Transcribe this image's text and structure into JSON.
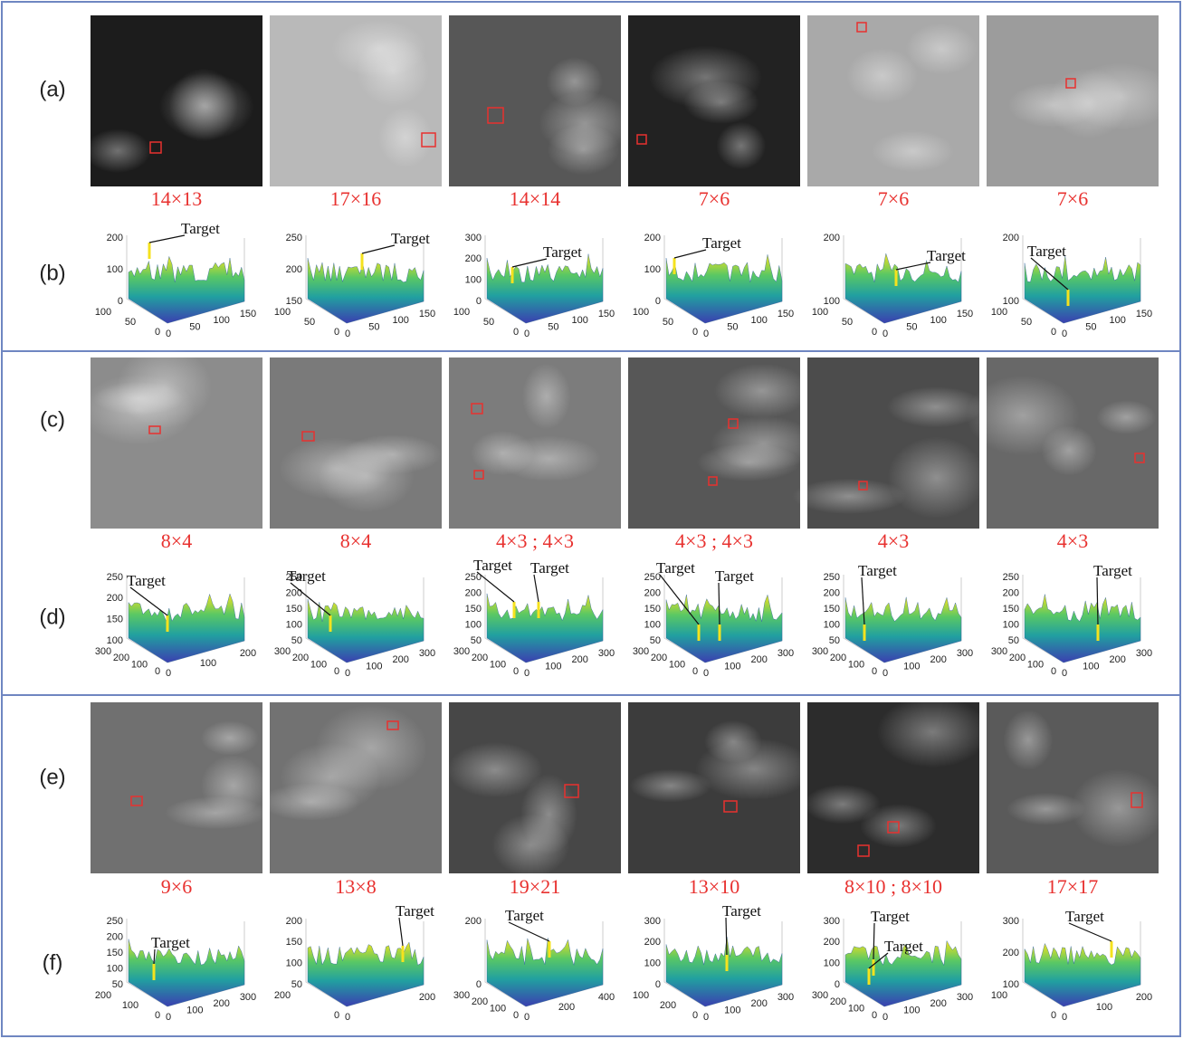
{
  "groups": [
    {
      "image_row": {
        "label": "(a)",
        "panels": [
          {
            "size": "14×13"
          },
          {
            "size": "17×16"
          },
          {
            "size": "14×14"
          },
          {
            "size": "7×6"
          },
          {
            "size": "7×6"
          },
          {
            "size": "7×6"
          }
        ]
      },
      "plot_row": {
        "label": "(b)",
        "panels": [
          {
            "targets": [
              "Target"
            ],
            "z_ticks": [
              "200",
              "100",
              "0"
            ],
            "y_ticks": [
              "100",
              "50",
              "0"
            ],
            "x_ticks": [
              "0",
              "50",
              "100",
              "150"
            ]
          },
          {
            "targets": [
              "Target"
            ],
            "z_ticks": [
              "250",
              "200",
              "150"
            ],
            "y_ticks": [
              "100",
              "50",
              "0"
            ],
            "x_ticks": [
              "0",
              "50",
              "100",
              "150"
            ]
          },
          {
            "targets": [
              "Target"
            ],
            "z_ticks": [
              "300",
              "200",
              "100",
              "0"
            ],
            "y_ticks": [
              "100",
              "50",
              "0"
            ],
            "x_ticks": [
              "0",
              "50",
              "100",
              "150"
            ]
          },
          {
            "targets": [
              "Target"
            ],
            "z_ticks": [
              "200",
              "100",
              "0"
            ],
            "y_ticks": [
              "100",
              "50",
              "0"
            ],
            "x_ticks": [
              "0",
              "50",
              "100",
              "150"
            ]
          },
          {
            "targets": [
              "Target"
            ],
            "z_ticks": [
              "200",
              "100"
            ],
            "y_ticks": [
              "100",
              "50",
              "0"
            ],
            "x_ticks": [
              "0",
              "50",
              "100",
              "150"
            ]
          },
          {
            "targets": [
              "Target"
            ],
            "z_ticks": [
              "200",
              "100"
            ],
            "y_ticks": [
              "100",
              "50",
              "0"
            ],
            "x_ticks": [
              "0",
              "50",
              "100",
              "150"
            ]
          }
        ]
      }
    },
    {
      "image_row": {
        "label": "(c)",
        "panels": [
          {
            "size": "8×4"
          },
          {
            "size": "8×4"
          },
          {
            "size": "4×3 ; 4×3"
          },
          {
            "size": "4×3 ; 4×3"
          },
          {
            "size": "4×3"
          },
          {
            "size": "4×3"
          }
        ]
      },
      "plot_row": {
        "label": "(d)",
        "panels": [
          {
            "targets": [
              "Target"
            ],
            "z_ticks": [
              "250",
              "200",
              "150",
              "100"
            ],
            "y_ticks": [
              "300",
              "200",
              "100",
              "0"
            ],
            "x_ticks": [
              "0",
              "100",
              "200"
            ]
          },
          {
            "targets": [
              "Target"
            ],
            "z_ticks": [
              "250",
              "200",
              "150",
              "100",
              "50"
            ],
            "y_ticks": [
              "300",
              "200",
              "100",
              "0"
            ],
            "x_ticks": [
              "0",
              "100",
              "200",
              "300"
            ]
          },
          {
            "targets": [
              "Target",
              "Target"
            ],
            "z_ticks": [
              "250",
              "200",
              "150",
              "100",
              "50"
            ],
            "y_ticks": [
              "300",
              "200",
              "100",
              "0"
            ],
            "x_ticks": [
              "0",
              "100",
              "200",
              "300"
            ]
          },
          {
            "targets": [
              "Target",
              "Target"
            ],
            "z_ticks": [
              "250",
              "200",
              "150",
              "100",
              "50"
            ],
            "y_ticks": [
              "300",
              "200",
              "100",
              "0"
            ],
            "x_ticks": [
              "0",
              "100",
              "200",
              "300"
            ]
          },
          {
            "targets": [
              "Target"
            ],
            "z_ticks": [
              "250",
              "200",
              "150",
              "100",
              "50"
            ],
            "y_ticks": [
              "300",
              "200",
              "100",
              "0"
            ],
            "x_ticks": [
              "0",
              "100",
              "200",
              "300"
            ]
          },
          {
            "targets": [
              "Target"
            ],
            "z_ticks": [
              "250",
              "200",
              "150",
              "100",
              "50"
            ],
            "y_ticks": [
              "300",
              "200",
              "100",
              "0"
            ],
            "x_ticks": [
              "0",
              "100",
              "200",
              "300"
            ]
          }
        ]
      }
    },
    {
      "image_row": {
        "label": "(e)",
        "panels": [
          {
            "size": "9×6"
          },
          {
            "size": "13×8"
          },
          {
            "size": "19×21"
          },
          {
            "size": "13×10"
          },
          {
            "size": "8×10 ; 8×10"
          },
          {
            "size": "17×17"
          }
        ]
      },
      "plot_row": {
        "label": "(f)",
        "panels": [
          {
            "targets": [
              "Target"
            ],
            "z_ticks": [
              "250",
              "200",
              "150",
              "100",
              "50"
            ],
            "y_ticks": [
              "200",
              "100",
              "0"
            ],
            "x_ticks": [
              "0",
              "100",
              "200",
              "300"
            ]
          },
          {
            "targets": [
              "Target"
            ],
            "z_ticks": [
              "200",
              "150",
              "100",
              "50"
            ],
            "y_ticks": [
              "200",
              "0"
            ],
            "x_ticks": [
              "0",
              "200"
            ]
          },
          {
            "targets": [
              "Target"
            ],
            "z_ticks": [
              "200",
              "0"
            ],
            "y_ticks": [
              "300",
              "200",
              "100",
              "0"
            ],
            "x_ticks": [
              "0",
              "200",
              "400"
            ]
          },
          {
            "targets": [
              "Target"
            ],
            "z_ticks": [
              "300",
              "200",
              "100",
              "0"
            ],
            "y_ticks": [
              "100",
              "200",
              "0"
            ],
            "x_ticks": [
              "0",
              "100",
              "200",
              "300"
            ]
          },
          {
            "targets": [
              "Target",
              "Target"
            ],
            "z_ticks": [
              "300",
              "200",
              "100",
              "0"
            ],
            "y_ticks": [
              "300",
              "200",
              "100",
              "0"
            ],
            "x_ticks": [
              "0",
              "100",
              "200",
              "300"
            ]
          },
          {
            "targets": [
              "Target"
            ],
            "z_ticks": [
              "300",
              "200",
              "100"
            ],
            "y_ticks": [
              "100",
              "0"
            ],
            "x_ticks": [
              "0",
              "100",
              "200"
            ]
          }
        ]
      }
    }
  ]
}
